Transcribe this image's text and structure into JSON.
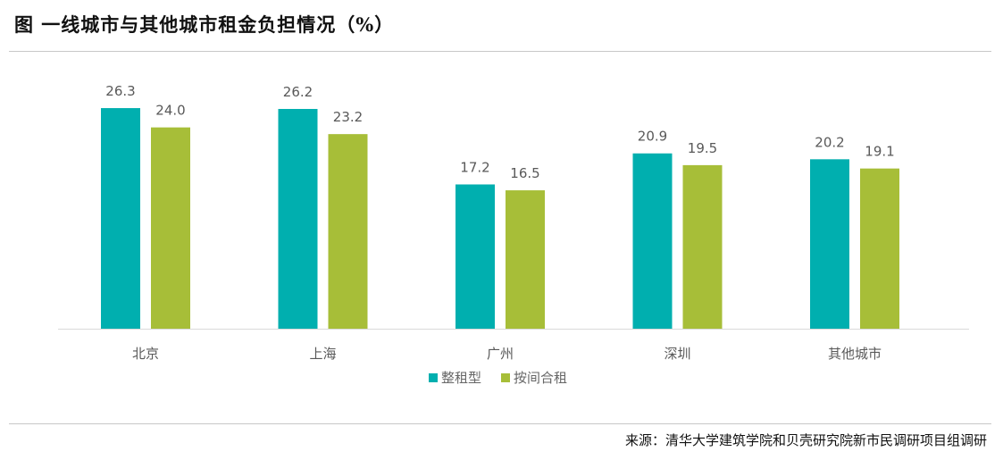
{
  "title": "图  一线城市与其他城市租金负担情况（%）",
  "source": "来源：清华大学建筑学院和贝壳研究院新市民调研项目组调研",
  "chart_data": {
    "type": "bar",
    "title": "图  一线城市与其他城市租金负担情况（%）",
    "categories": [
      "北京",
      "上海",
      "广州",
      "深圳",
      "其他城市"
    ],
    "series": [
      {
        "name": "整租型",
        "values": [
          26.3,
          26.2,
          17.2,
          20.9,
          20.2
        ],
        "color": "#00AFAF"
      },
      {
        "name": "按间合租",
        "values": [
          24.0,
          23.2,
          16.5,
          19.5,
          19.1
        ],
        "color": "#A7BE38"
      }
    ],
    "ylim": [
      0,
      28
    ],
    "grid": false,
    "legend": "bottom",
    "data_labels": true
  }
}
